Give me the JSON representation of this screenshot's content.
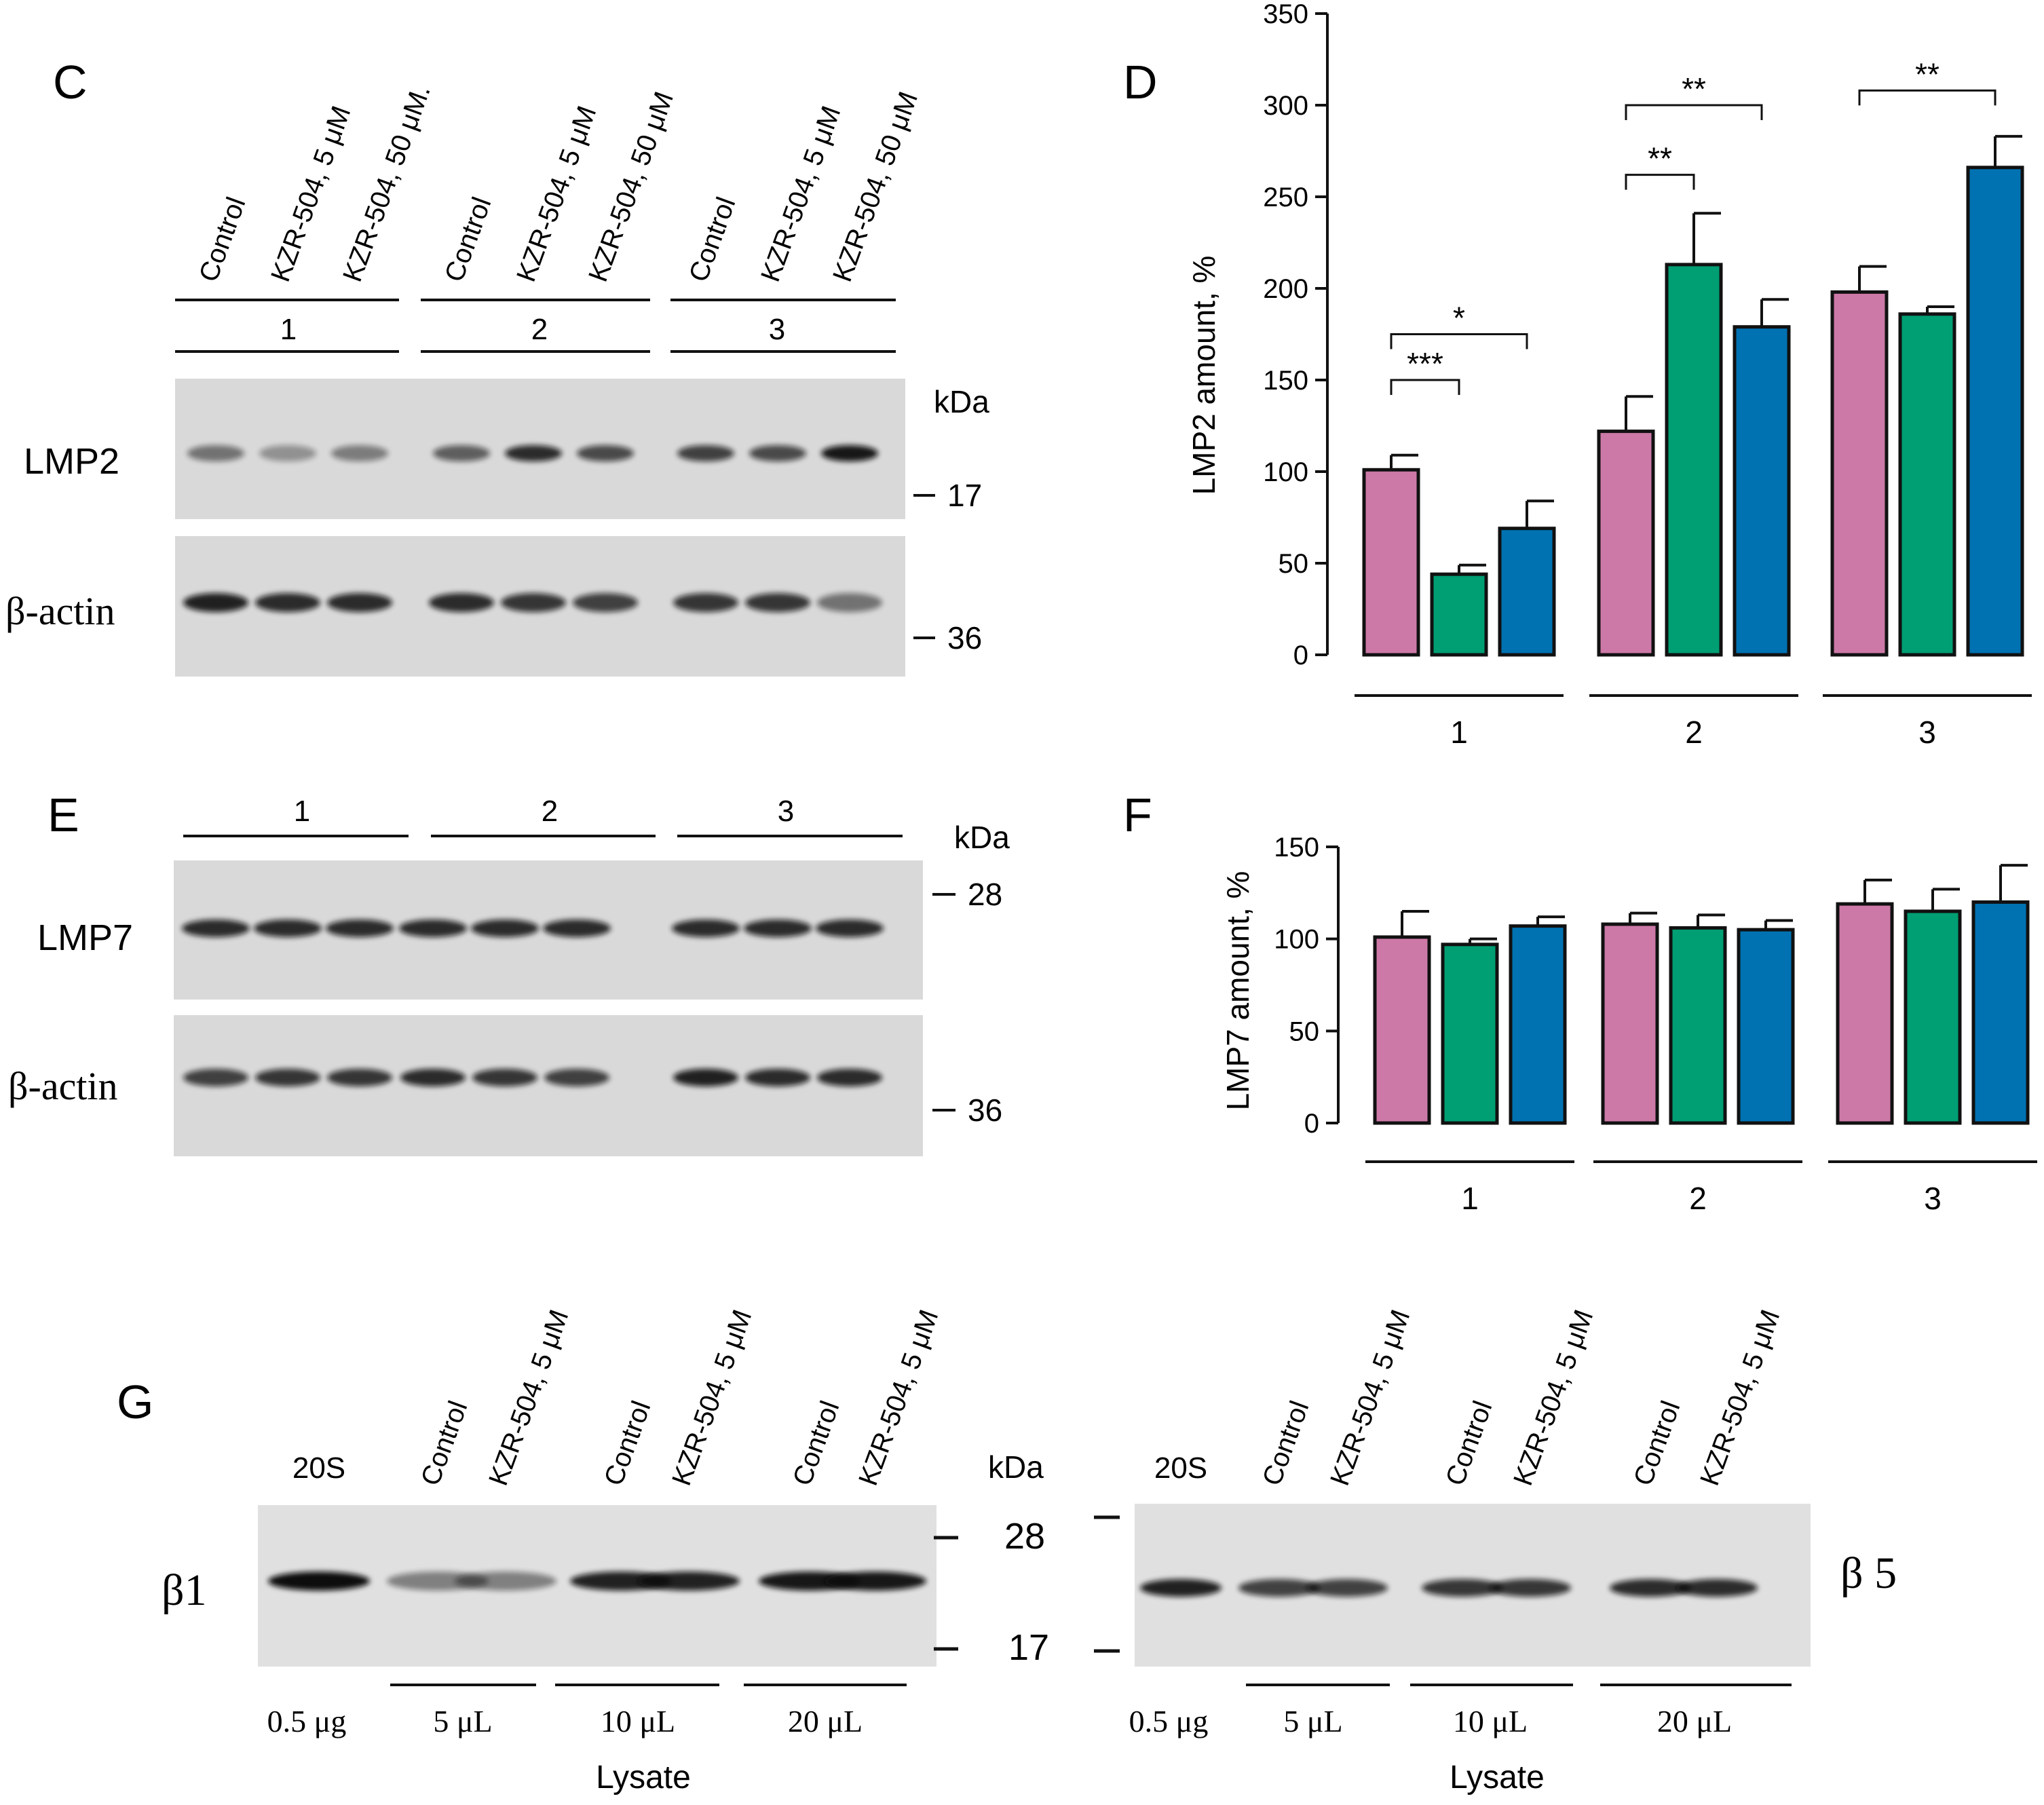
{
  "panels": {
    "C": {
      "label": "C",
      "lanes": [
        "Control",
        "KZR-504, 5 μM",
        "KZR-504, 50 μM.",
        "Control",
        "KZR-504, 5 μM",
        "KZR-504, 50 μM",
        "Control",
        "KZR-504, 5 μM",
        "KZR-504, 50 μM"
      ],
      "groups": [
        "1",
        "2",
        "3"
      ],
      "row1_label": "LMP2",
      "row2_label": "β-actin",
      "kda": "kDa",
      "marker1": "17",
      "marker2": "36"
    },
    "D": {
      "label": "D"
    },
    "E": {
      "label": "E",
      "groups": [
        "1",
        "2",
        "3"
      ],
      "row1_label": "LMP7",
      "row2_label": "β-actin",
      "kda": "kDa",
      "marker1": "28",
      "marker2": "36"
    },
    "F": {
      "label": "F"
    },
    "G": {
      "label": "G",
      "left": {
        "lanes": [
          "20S",
          "Control",
          "KZR-504, 5 μM",
          "Control",
          "KZR-504, 5 μM",
          "Control",
          "KZR-504, 5 μM"
        ],
        "row_label": "β1",
        "bottom": [
          "0.5 μg",
          "5 μL",
          "10 μL",
          "20 μL"
        ],
        "lysate": "Lysate",
        "kda": "kDa",
        "marker1": "28",
        "marker2": "17"
      },
      "right": {
        "lanes": [
          "20S",
          "Control",
          "KZR-504, 5 μM",
          "Control",
          "KZR-504, 5 μM",
          "Control",
          "KZR-504, 5 μM"
        ],
        "row_label": "β 5",
        "bottom": [
          "0.5 μg",
          "5 μL",
          "10 μL",
          "20 μL"
        ],
        "lysate": "Lysate"
      }
    }
  },
  "colors": {
    "control": "#cc79a7",
    "kzr5": "#009e73",
    "kzr50": "#0072b2"
  },
  "chart_data": [
    {
      "id": "D",
      "type": "bar",
      "title": "",
      "ylabel": "LMP2 amount, %",
      "xlabel": "",
      "ylim": [
        0,
        350
      ],
      "yticks": [
        0,
        50,
        100,
        150,
        200,
        250,
        300,
        350
      ],
      "categories": [
        "1",
        "2",
        "3"
      ],
      "series": [
        {
          "name": "Control",
          "values": [
            101,
            122,
            198
          ],
          "errors": [
            8,
            19,
            14
          ]
        },
        {
          "name": "KZR-504, 5 μM",
          "values": [
            44,
            213,
            186
          ],
          "errors": [
            5,
            28,
            4
          ]
        },
        {
          "name": "KZR-504, 50 μM",
          "values": [
            69,
            179,
            266
          ],
          "errors": [
            15,
            15,
            17
          ]
        }
      ],
      "annotations": [
        {
          "group": "1",
          "from": 0,
          "to": 1,
          "text": "***",
          "level": 150
        },
        {
          "group": "1",
          "from": 0,
          "to": 2,
          "text": "*",
          "level": 175
        },
        {
          "group": "2",
          "from": 0,
          "to": 1,
          "text": "**",
          "level": 262
        },
        {
          "group": "2",
          "from": 0,
          "to": 2,
          "text": "**",
          "level": 300
        },
        {
          "group": "3",
          "from": 0,
          "to": 2,
          "text": "**",
          "level": 308
        }
      ]
    },
    {
      "id": "F",
      "type": "bar",
      "title": "",
      "ylabel": "LMP7 amount, %",
      "xlabel": "",
      "ylim": [
        0,
        150
      ],
      "yticks": [
        0,
        50,
        100,
        150
      ],
      "categories": [
        "1",
        "2",
        "3"
      ],
      "series": [
        {
          "name": "Control",
          "values": [
            101,
            108,
            119
          ],
          "errors": [
            14,
            6,
            13
          ]
        },
        {
          "name": "KZR-504, 5 μM",
          "values": [
            97,
            106,
            115
          ],
          "errors": [
            3,
            7,
            12
          ]
        },
        {
          "name": "KZR-504, 50 μM",
          "values": [
            107,
            105,
            120
          ],
          "errors": [
            5,
            5,
            20
          ]
        }
      ],
      "annotations": []
    }
  ]
}
